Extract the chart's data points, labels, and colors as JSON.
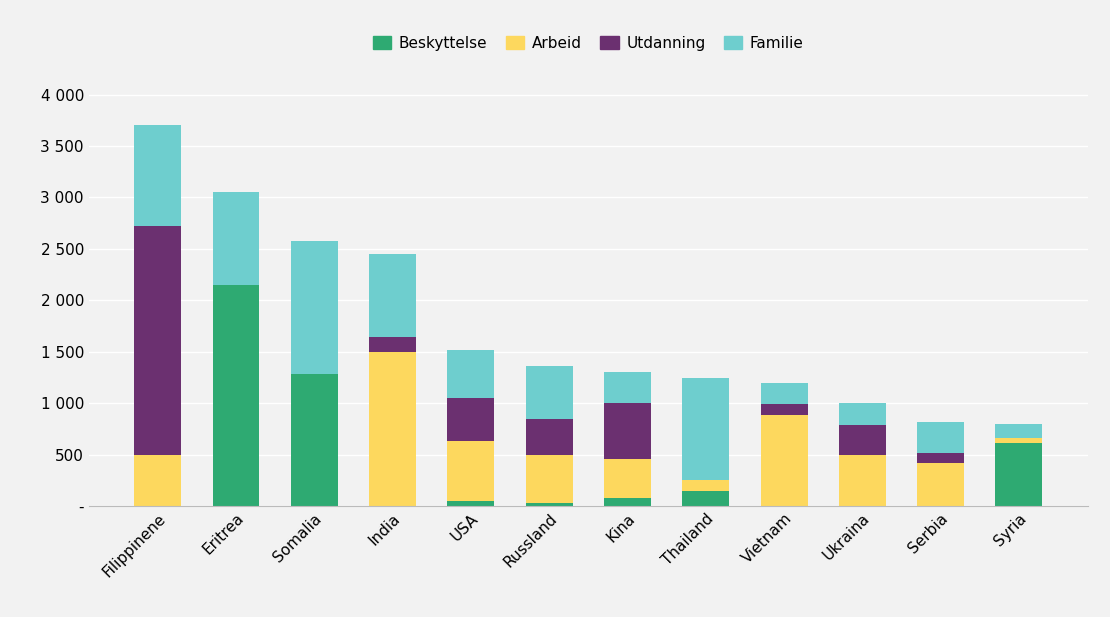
{
  "categories": [
    "Filippinene",
    "Eritrea",
    "Somalia",
    "India",
    "USA",
    "Russland",
    "Kina",
    "Thailand",
    "Vietnam",
    "Ukraina",
    "Serbia",
    "Syria"
  ],
  "beskyttelse": [
    0,
    2150,
    1280,
    0,
    50,
    30,
    80,
    150,
    0,
    0,
    0,
    610
  ],
  "arbeid": [
    500,
    0,
    0,
    1500,
    580,
    470,
    380,
    100,
    880,
    500,
    420,
    50
  ],
  "utdanning": [
    2220,
    0,
    0,
    140,
    420,
    350,
    540,
    0,
    110,
    290,
    95,
    0
  ],
  "familie": [
    980,
    900,
    1300,
    810,
    470,
    510,
    300,
    990,
    210,
    210,
    300,
    140
  ],
  "color_beskyttelse": "#2eaa72",
  "color_arbeid": "#fdd85e",
  "color_utdanning": "#6b3070",
  "color_familie": "#6ecece",
  "ylim": [
    0,
    4200
  ],
  "yticks": [
    0,
    500,
    1000,
    1500,
    2000,
    2500,
    3000,
    3500,
    4000
  ],
  "ytick_labels": [
    "-",
    "500",
    "1 000",
    "1 500",
    "2 000",
    "2 500",
    "3 000",
    "3 500",
    "4 000"
  ],
  "background_color": "#f2f2f2",
  "plot_bg_color": "#f2f2f2",
  "bar_width": 0.6,
  "legend_fontsize": 11,
  "tick_fontsize": 11
}
